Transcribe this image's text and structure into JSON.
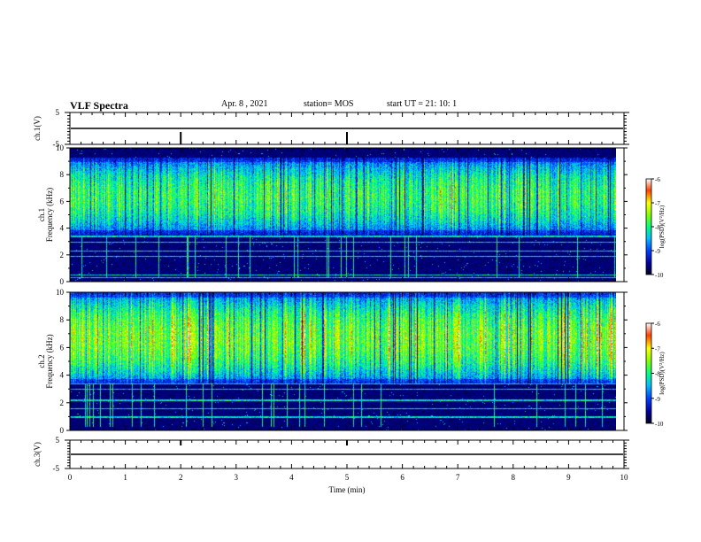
{
  "header": {
    "title": "VLF Spectra",
    "date": "Apr. 8 , 2021",
    "station": "station= MOS",
    "start_ut": "start UT = 21: 10: 1"
  },
  "chart_data": [
    {
      "type": "line",
      "panel": "ch1-voltage",
      "ylabel": "ch.1(V)",
      "yticks": [
        "5",
        "-5"
      ],
      "ylim": [
        -5,
        5
      ],
      "xlim": [
        0,
        10
      ],
      "trace_level": 0
    },
    {
      "type": "heatmap",
      "panel": "ch1-spectrogram",
      "ylabel": "ch.1\nFrequency (kHz)",
      "yticks": [
        "0",
        "2",
        "4",
        "6",
        "8",
        "10"
      ],
      "ylim": [
        0,
        10
      ],
      "xlim": [
        0,
        9.85
      ],
      "band_kHz": [
        3.5,
        9.3
      ],
      "lines_kHz": [
        0.35,
        0.55,
        1.9,
        2.3,
        3.0,
        3.4
      ]
    },
    {
      "type": "heatmap",
      "panel": "ch2-spectrogram",
      "ylabel": "ch.2\nFrequency (kHz)",
      "yticks": [
        "0",
        "2",
        "4",
        "6",
        "8",
        "10"
      ],
      "ylim": [
        0,
        10
      ],
      "xlim": [
        0,
        9.85
      ],
      "band_kHz": [
        3.4,
        10
      ],
      "lines_kHz": [
        1.0,
        1.6,
        2.2,
        3.0,
        3.4
      ]
    },
    {
      "type": "line",
      "panel": "ch3-voltage",
      "ylabel": "ch.3(V)",
      "yticks": [
        "5",
        "-5"
      ],
      "ylim": [
        -5,
        5
      ],
      "xlim": [
        0,
        10
      ],
      "trace_level": 0
    }
  ],
  "xaxis": {
    "label": "Time (min)",
    "ticks": [
      "0",
      "1",
      "2",
      "3",
      "4",
      "5",
      "6",
      "7",
      "8",
      "9",
      "10"
    ]
  },
  "colorbar": {
    "label": "log(PSD)(V²/Hz)",
    "ticks": [
      "-6",
      "-7",
      "-8",
      "-9",
      "-10"
    ],
    "range": [
      -10,
      -6
    ]
  }
}
